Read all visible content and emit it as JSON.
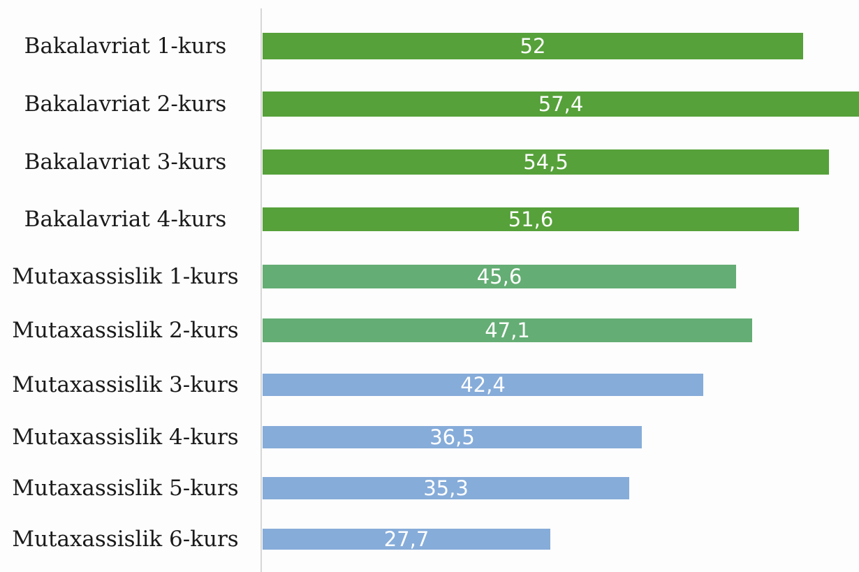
{
  "chart_data": {
    "type": "bar",
    "orientation": "horizontal",
    "title": "",
    "xlabel": "",
    "ylabel": "",
    "categories": [
      "Bakalavriat 1-kurs",
      "Bakalavriat 2-kurs",
      "Bakalavriat 3-kurs",
      "Bakalavriat 4-kurs",
      "Mutaxassislik 1-kurs",
      "Mutaxassislik 2-kurs",
      "Mutaxassislik 3-kurs",
      "Mutaxassislik 4-kurs",
      "Mutaxassislik 5-kurs",
      "Mutaxassislik 6-kurs"
    ],
    "values": [
      52,
      57.4,
      54.5,
      51.6,
      45.6,
      47.1,
      42.4,
      36.5,
      35.3,
      27.7
    ],
    "value_labels": [
      "52",
      "57,4",
      "54,5",
      "51,6",
      "45,6",
      "47,1",
      "42,4",
      "36,5",
      "35,3",
      "27,7"
    ],
    "colors": [
      "#56a13a",
      "#56a13a",
      "#56a13a",
      "#56a13a",
      "#64ad74",
      "#64ad74",
      "#86acd9",
      "#86acd9",
      "#86acd9",
      "#86acd9"
    ],
    "xlim": [
      0,
      57.4
    ],
    "grid": false,
    "legend": "none"
  }
}
